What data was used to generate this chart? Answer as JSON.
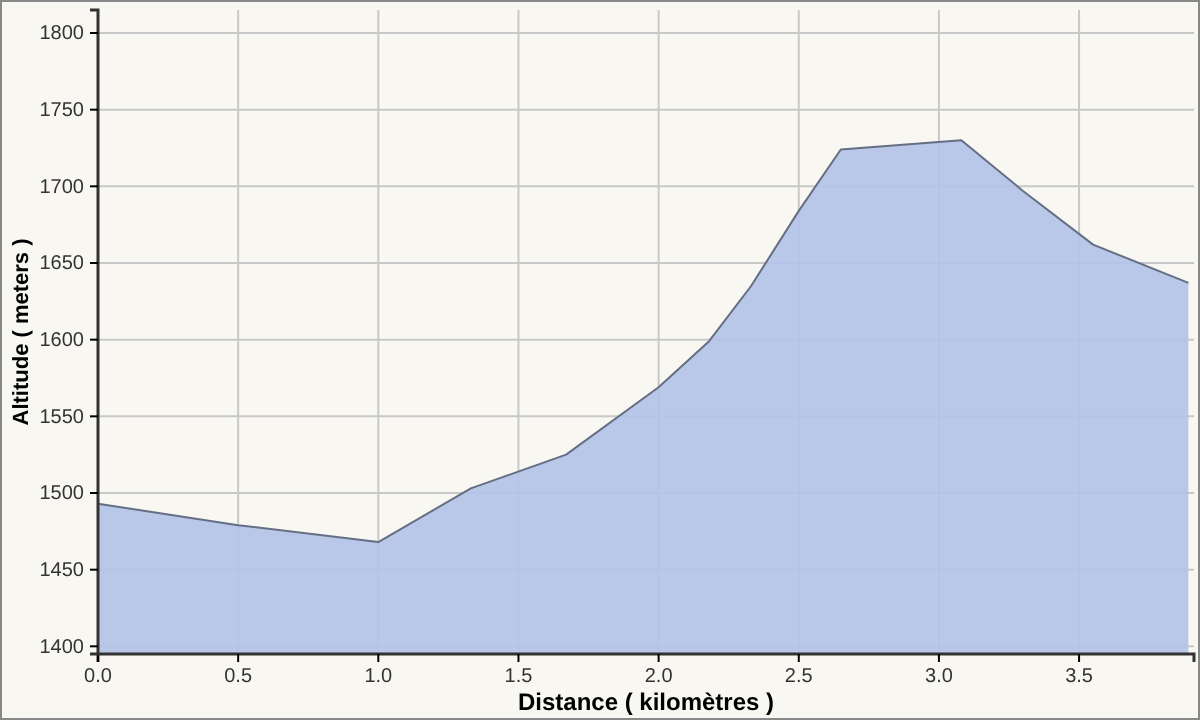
{
  "chart_data": {
    "type": "area",
    "xlabel": "Distance ( kilomètres )",
    "ylabel": "Altitude ( meters )",
    "x": [
      0,
      0.5,
      1.0,
      1.33,
      1.67,
      2.0,
      2.18,
      2.33,
      2.5,
      2.65,
      3.08,
      3.3,
      3.55,
      3.89
    ],
    "series": [
      {
        "color": "#b3c3e8",
        "values": [
          1493,
          1479,
          1468,
          1503,
          1525,
          1569,
          1599,
          1635,
          1684,
          1724,
          1730,
          1697,
          1662,
          1637
        ]
      }
    ],
    "xlim": [
      0,
      3.91
    ],
    "ylim": [
      1395,
      1815
    ],
    "xticks": [
      {
        "value": 0,
        "label": "0.0"
      },
      {
        "value": 0.5,
        "label": "0.5"
      },
      {
        "value": 1,
        "label": "1.0"
      },
      {
        "value": 1.5,
        "label": "1.5"
      },
      {
        "value": 2,
        "label": "2.0"
      },
      {
        "value": 2.5,
        "label": "2.5"
      },
      {
        "value": 3,
        "label": "3.0"
      },
      {
        "value": 3.5,
        "label": "3.5"
      }
    ],
    "yticks": [
      1400,
      1450,
      1500,
      1550,
      1600,
      1650,
      1700,
      1750,
      1800
    ],
    "grid": true
  }
}
